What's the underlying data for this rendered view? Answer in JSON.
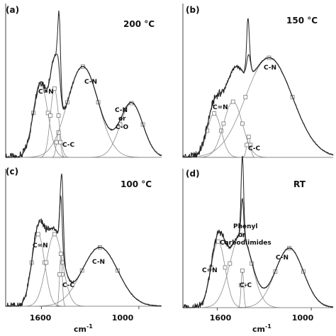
{
  "chart_data": [
    {
      "type": "line",
      "panel_label": "(a)",
      "temperature": "200 °C",
      "x_ticks": [],
      "xlim": [
        1820,
        860
      ],
      "ylim": [
        0,
        1.05
      ],
      "components": [
        {
          "name": "C=N",
          "center": 1605,
          "height": 0.5,
          "width": 45
        },
        {
          "name": "",
          "center": 1520,
          "height": 0.47,
          "width": 25
        },
        {
          "name": "C-C",
          "center": 1495,
          "height": 0.17,
          "width": 12
        },
        {
          "name": "C-N",
          "center": 1345,
          "height": 0.62,
          "width": 95
        },
        {
          "name": "C-N or C-O",
          "center": 1045,
          "height": 0.37,
          "width": 70
        }
      ],
      "sharp_peak": {
        "center": 1490,
        "height": 0.38,
        "width": 8
      },
      "labels": [
        "C=N",
        "C-C",
        "C-N",
        "C-N",
        "or",
        "C-O"
      ]
    },
    {
      "type": "line",
      "panel_label": "(b)",
      "temperature": "150 °C",
      "x_ticks": [],
      "xlim": [
        1820,
        860
      ],
      "ylim": [
        0,
        1.05
      ],
      "components": [
        {
          "name": "C=N",
          "center": 1620,
          "height": 0.3,
          "width": 45
        },
        {
          "name": "",
          "center": 1500,
          "height": 0.38,
          "width": 60
        },
        {
          "name": "C-C",
          "center": 1400,
          "height": 0.14,
          "width": 12
        },
        {
          "name": "C-N",
          "center": 1270,
          "height": 0.68,
          "width": 150
        }
      ],
      "sharp_peak": {
        "center": 1405,
        "height": 0.26,
        "width": 8
      },
      "labels": [
        "C=N",
        "C-C",
        "C-N"
      ]
    },
    {
      "type": "line",
      "panel_label": "(c)",
      "temperature": "100 °C",
      "x_ticks": [],
      "xlim": [
        1820,
        860
      ],
      "ylim": [
        0,
        1.05
      ],
      "components": [
        {
          "name": "C=N",
          "center": 1620,
          "height": 0.55,
          "width": 40
        },
        {
          "name": "",
          "center": 1520,
          "height": 0.55,
          "width": 50
        },
        {
          "name": "C-C",
          "center": 1480,
          "height": 0.4,
          "width": 8
        },
        {
          "name": "C-N",
          "center": 1240,
          "height": 0.45,
          "width": 110
        }
      ],
      "sharp_peak": {
        "center": 1470,
        "height": 0.35,
        "width": 7
      },
      "labels": [
        "C=N",
        "C-C",
        "C-N"
      ]
    },
    {
      "type": "line",
      "panel_label": "(d)",
      "temperature": "RT",
      "x_ticks": [
        "1600",
        "1000"
      ],
      "x_tick_values": [
        1600,
        1000
      ],
      "xlabel": "cm",
      "xlabel_exponent": "-1",
      "xlim": [
        1820,
        860
      ],
      "ylim": [
        0,
        1.05
      ],
      "components": [
        {
          "name": "C=N",
          "center": 1595,
          "height": 0.5,
          "width": 45
        },
        {
          "name": "Phenyl or Carbodiimides",
          "center": 1450,
          "height": 0.55,
          "width": 70
        },
        {
          "name": "C-C",
          "center": 1440,
          "height": 0.28,
          "width": 8
        },
        {
          "name": "C-N",
          "center": 1140,
          "height": 0.45,
          "width": 90
        }
      ],
      "sharp_peak": {
        "center": 1440,
        "height": 0.32,
        "width": 8
      },
      "labels": [
        "Phenyl",
        "or",
        "Carbodiimides",
        "C=N",
        "C-C",
        "C-N"
      ]
    }
  ],
  "bottom_left_axis": {
    "x_ticks": [
      "1600",
      "1000"
    ],
    "xlabel": "cm",
    "xlabel_exponent": "-1"
  }
}
